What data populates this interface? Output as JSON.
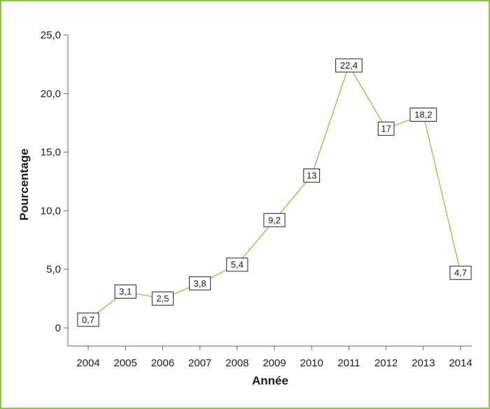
{
  "chart_data": {
    "type": "line",
    "xlabel": "Année",
    "ylabel": "Pourcentage",
    "ylim": [
      0,
      25
    ],
    "yticks": [
      "0",
      "5,0",
      "10,0",
      "15,0",
      "20,0",
      "25,0"
    ],
    "categories": [
      "2004",
      "2005",
      "2006",
      "2007",
      "2008",
      "2009",
      "2010",
      "2011",
      "2012",
      "2013",
      "2014"
    ],
    "series": [
      {
        "values": [
          0.7,
          3.1,
          2.5,
          3.8,
          5.4,
          9.2,
          13,
          22.4,
          17,
          18.2,
          4.7
        ],
        "labels": [
          "0,7",
          "3,1",
          "2,5",
          "3,8",
          "5,4",
          "9,2",
          "13",
          "22,4",
          "17",
          "18,2",
          "4,7"
        ],
        "color": "#8cc63f"
      }
    ],
    "grid": false,
    "legend": "none",
    "frame_color": "#8cc63f",
    "axis_color": "#666666"
  }
}
